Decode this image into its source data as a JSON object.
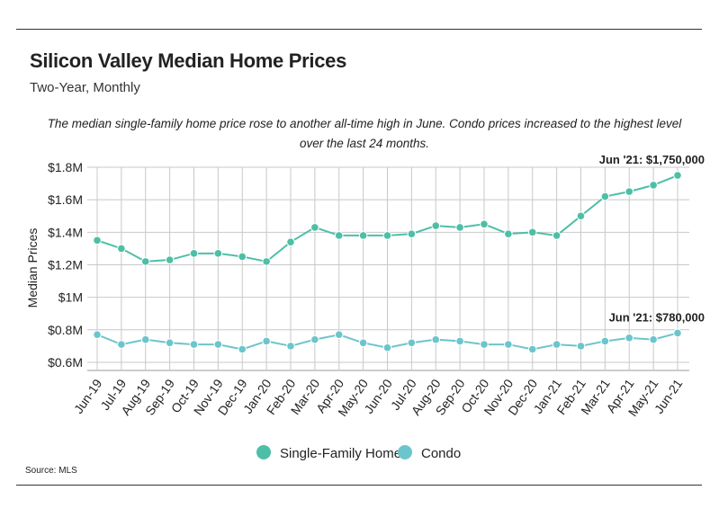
{
  "title": "Silicon Valley Median Home Prices",
  "subtitle": "Two-Year, Monthly",
  "caption": "The median single-family home price rose to another all-time high in June. Condo prices increased to the highest level over the last 24 months.",
  "source": "Source:  MLS",
  "colors": {
    "single_family": "#4dbfa6",
    "condo": "#6cc5cc",
    "grid": "#c8c8c8",
    "axis": "#999999"
  },
  "chart_data": {
    "type": "line",
    "title": "Silicon Valley Median Home Prices",
    "subtitle": "Two-Year, Monthly",
    "xlabel": "",
    "ylabel": "Median Prices",
    "ylim": [
      0.55,
      1.8
    ],
    "yticks": [
      0.6,
      0.8,
      1.0,
      1.2,
      1.4,
      1.6,
      1.8
    ],
    "ytick_labels": [
      "$0.6M",
      "$0.8M",
      "$1M",
      "$1.2M",
      "$1.4M",
      "$1.6M",
      "$1.8M"
    ],
    "grid": true,
    "legend_position": "bottom-center",
    "categories": [
      "Jun-19",
      "Jul-19",
      "Aug-19",
      "Sep-19",
      "Oct-19",
      "Nov-19",
      "Dec-19",
      "Jan-20",
      "Feb-20",
      "Mar-20",
      "Apr-20",
      "May-20",
      "Jun-20",
      "Jul-20",
      "Aug-20",
      "Sep-20",
      "Oct-20",
      "Nov-20",
      "Dec-20",
      "Jan-21",
      "Feb-21",
      "Mar-21",
      "Apr-21",
      "May-21",
      "Jun-21"
    ],
    "series": [
      {
        "name": "Single-Family Home",
        "values": [
          1.35,
          1.3,
          1.22,
          1.23,
          1.27,
          1.27,
          1.25,
          1.22,
          1.34,
          1.43,
          1.38,
          1.38,
          1.38,
          1.39,
          1.44,
          1.43,
          1.45,
          1.39,
          1.4,
          1.38,
          1.5,
          1.62,
          1.65,
          1.69,
          1.75
        ]
      },
      {
        "name": "Condo",
        "values": [
          0.77,
          0.71,
          0.74,
          0.72,
          0.71,
          0.71,
          0.68,
          0.73,
          0.7,
          0.74,
          0.77,
          0.72,
          0.69,
          0.72,
          0.74,
          0.73,
          0.71,
          0.71,
          0.68,
          0.71,
          0.7,
          0.73,
          0.75,
          0.74,
          0.78
        ]
      }
    ],
    "annotations": [
      {
        "series": "Single-Family Home",
        "index": 24,
        "text": "Jun '21: $1,750,000"
      },
      {
        "series": "Condo",
        "index": 24,
        "text": "Jun '21: $780,000"
      }
    ]
  }
}
